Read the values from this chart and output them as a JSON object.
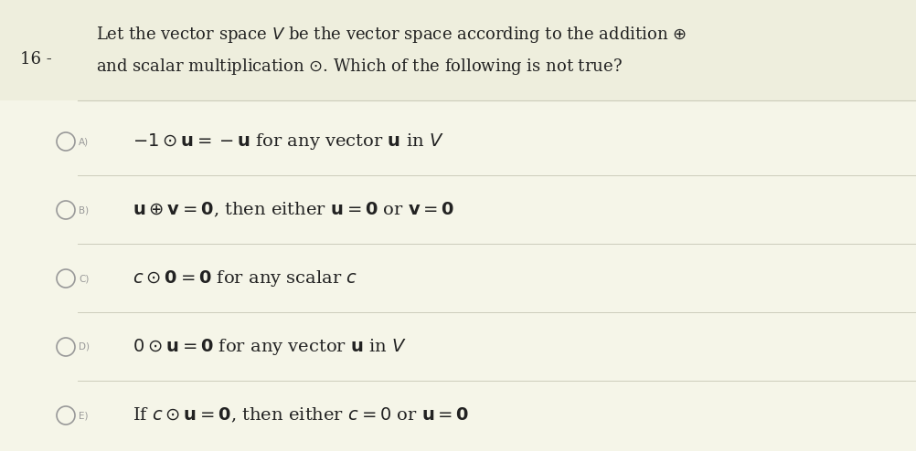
{
  "bg_color": "#f5f5e8",
  "header_bg": "#eeeedd",
  "question_number": "16 -",
  "q_line1": "Let the vector space $V$ be the vector space according to the addition $\\oplus$",
  "q_line2": "and scalar multiplication $\\odot$. Which of the following is not true?",
  "options": [
    {
      "label": "A)",
      "text": "$-1 \\odot \\mathbf{u} = -\\mathbf{u}$ for any vector $\\mathbf{u}$ in $V$"
    },
    {
      "label": "B)",
      "text": "$\\mathbf{u} \\oplus \\mathbf{v} = \\mathbf{0}$, then either $\\mathbf{u} = \\mathbf{0}$ or $\\mathbf{v} = \\mathbf{0}$"
    },
    {
      "label": "C)",
      "text": "$c \\odot \\mathbf{0} = \\mathbf{0}$ for any scalar $c$"
    },
    {
      "label": "D)",
      "text": "$0 \\odot \\mathbf{u} = \\mathbf{0}$ for any vector $\\mathbf{u}$ in $V$"
    },
    {
      "label": "E)",
      "text": "If $c \\odot \\mathbf{u} = \\mathbf{0}$, then either $c = 0$ or $\\mathbf{u} = \\mathbf{0}$"
    }
  ],
  "line_color": "#ccccbb",
  "text_color": "#222222",
  "circle_edge_color": "#999999",
  "label_color": "#999999",
  "fig_width": 10.03,
  "fig_height": 4.94,
  "dpi": 100
}
